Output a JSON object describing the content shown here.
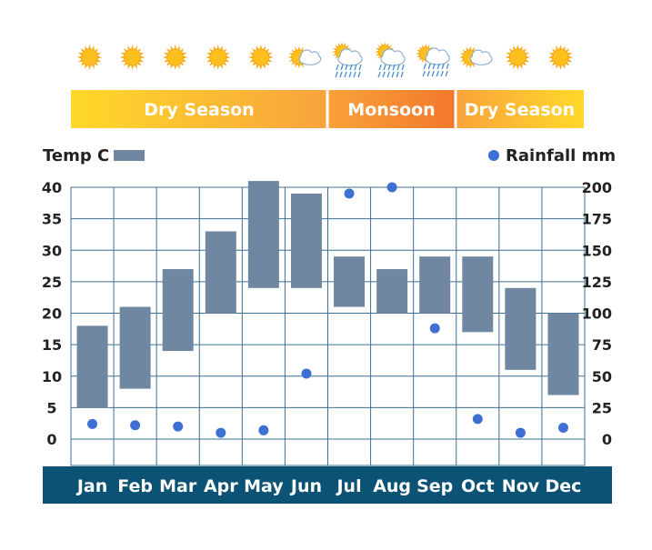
{
  "seasons": [
    {
      "label": "Dry Season",
      "start_month": 1,
      "end_month": 6,
      "colors": [
        "#FFD92A",
        "#F7A33C"
      ]
    },
    {
      "label": "Monsoon",
      "start_month": 7,
      "end_month": 9,
      "colors": [
        "#F9A23A",
        "#F2782C"
      ]
    },
    {
      "label": "Dry Season",
      "start_month": 10,
      "end_month": 12,
      "colors": [
        "#F9A33B",
        "#FFD92A"
      ]
    }
  ],
  "weather_icons": [
    "sun-icon",
    "sun-icon",
    "sun-icon",
    "sun-icon",
    "sun-icon",
    "sun-cloud-icon",
    "sun-rain-icon",
    "sun-rain-icon",
    "sun-cloud-rain-icon",
    "sun-cloud-icon",
    "sun-icon",
    "sun-icon"
  ],
  "legend": {
    "temp_label": "Temp C",
    "rain_label": "Rainfall mm"
  },
  "colors": {
    "temp_bar": "#6F87A0",
    "rain_dot": "#3E6FD3",
    "month_band": "#0B5275",
    "grid": "#3D6F93",
    "text": "#222222"
  },
  "chart_data": {
    "type": "bar",
    "categories": [
      "Jan",
      "Feb",
      "Mar",
      "Apr",
      "May",
      "Jun",
      "Jul",
      "Aug",
      "Sep",
      "Oct",
      "Nov",
      "Dec"
    ],
    "series": [
      {
        "name": "Temp C",
        "type": "floating-bar",
        "axis": "left",
        "low": [
          5,
          8,
          14,
          20,
          24,
          24,
          21,
          20,
          20,
          17,
          11,
          7
        ],
        "high": [
          18,
          21,
          27,
          33,
          41,
          39,
          29,
          27,
          29,
          29,
          24,
          20
        ]
      },
      {
        "name": "Rainfall mm",
        "type": "scatter",
        "axis": "right",
        "values": [
          12,
          11,
          10,
          5,
          7,
          52,
          195,
          200,
          88,
          16,
          5,
          9
        ]
      }
    ],
    "y_left": {
      "min": 0,
      "max": 40,
      "ticks": [
        0,
        5,
        10,
        15,
        20,
        25,
        30,
        35,
        40
      ]
    },
    "y_right": {
      "min": 0,
      "max": 200,
      "ticks": [
        0,
        25,
        50,
        75,
        100,
        125,
        150,
        175,
        200
      ]
    },
    "grid": true,
    "legend_position": "top"
  }
}
